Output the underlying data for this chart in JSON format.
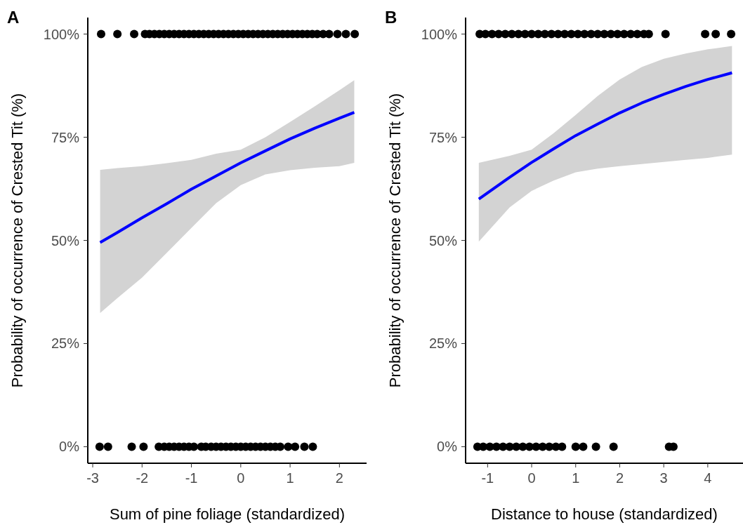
{
  "chart_data": [
    {
      "type": "scatter",
      "title": "A",
      "xlabel": "Sum of pine foliage (standardized)",
      "ylabel": "Probability of occurrence of Crested Tit (%)",
      "xlim": [
        -3.1,
        2.55
      ],
      "xticks": [
        -3,
        -2,
        -1,
        0,
        1,
        2
      ],
      "ylim": [
        -4,
        104
      ],
      "yticks": [
        {
          "value": 0,
          "label": "0%"
        },
        {
          "value": 25,
          "label": "25%"
        },
        {
          "value": 50,
          "label": "50%"
        },
        {
          "value": 75,
          "label": "75%"
        },
        {
          "value": 100,
          "label": "100%"
        }
      ],
      "grid": false,
      "series": [
        {
          "marker": "circle",
          "color": "#000000",
          "x": [
            -2.83,
            -2.5,
            -2.16,
            -1.94,
            -1.85,
            -1.75,
            -1.65,
            -1.55,
            -1.45,
            -1.35,
            -1.25,
            -1.15,
            -1.05,
            -0.95,
            -0.85,
            -0.75,
            -0.65,
            -0.55,
            -0.45,
            -0.35,
            -0.25,
            -0.15,
            -0.05,
            0.05,
            0.15,
            0.25,
            0.35,
            0.45,
            0.55,
            0.65,
            0.75,
            0.85,
            0.95,
            1.05,
            1.15,
            1.25,
            1.35,
            1.45,
            1.55,
            1.67,
            1.79,
            1.96,
            2.13,
            2.31
          ],
          "values": [
            100,
            100,
            100,
            100,
            100,
            100,
            100,
            100,
            100,
            100,
            100,
            100,
            100,
            100,
            100,
            100,
            100,
            100,
            100,
            100,
            100,
            100,
            100,
            100,
            100,
            100,
            100,
            100,
            100,
            100,
            100,
            100,
            100,
            100,
            100,
            100,
            100,
            100,
            100,
            100,
            100,
            100,
            100,
            100
          ]
        },
        {
          "marker": "circle",
          "color": "#000000",
          "x": [
            -2.86,
            -2.69,
            -2.21,
            -1.97,
            -1.66,
            -1.55,
            -1.45,
            -1.35,
            -1.25,
            -1.15,
            -1.05,
            -0.95,
            -0.8,
            -0.71,
            -0.6,
            -0.5,
            -0.4,
            -0.3,
            -0.2,
            -0.1,
            0,
            0.1,
            0.2,
            0.3,
            0.4,
            0.5,
            0.6,
            0.7,
            0.8,
            0.96,
            1.1,
            1.29,
            1.46
          ],
          "values": [
            0,
            0,
            0,
            0,
            0,
            0,
            0,
            0,
            0,
            0,
            0,
            0,
            0,
            0,
            0,
            0,
            0,
            0,
            0,
            0,
            0,
            0,
            0,
            0,
            0,
            0,
            0,
            0,
            0,
            0,
            0,
            0,
            0
          ]
        },
        {
          "type": "line",
          "color": "#0000ff",
          "x": [
            -2.85,
            -2.5,
            -2,
            -1.5,
            -1,
            -0.5,
            0,
            0.5,
            1,
            1.5,
            2,
            2.3
          ],
          "values": [
            49.5,
            51.9,
            55.5,
            58.9,
            62.4,
            65.6,
            68.8,
            71.7,
            74.6,
            77.2,
            79.6,
            81.0
          ],
          "lower": [
            32.4,
            36,
            41,
            47,
            53,
            59,
            63.4,
            66,
            67,
            67.6,
            68,
            68.8
          ],
          "upper": [
            67.1,
            67.5,
            68,
            68.7,
            69.5,
            71,
            72,
            75,
            78.7,
            82.5,
            86.4,
            88.8
          ]
        }
      ]
    },
    {
      "type": "scatter",
      "title": "B",
      "xlabel": "Distance to house (standardized)",
      "ylabel": "Probability of occurrence of Crested Tit (%)",
      "xlim": [
        -1.5,
        4.8
      ],
      "xticks": [
        -1,
        0,
        1,
        2,
        3,
        4
      ],
      "ylim": [
        -4,
        104
      ],
      "yticks": [
        {
          "value": 0,
          "label": "0%"
        },
        {
          "value": 25,
          "label": "25%"
        },
        {
          "value": 50,
          "label": "50%"
        },
        {
          "value": 75,
          "label": "75%"
        },
        {
          "value": 100,
          "label": "100%"
        }
      ],
      "grid": false,
      "series": [
        {
          "marker": "circle",
          "color": "#000000",
          "x": [
            -1.18,
            -1.05,
            -0.9,
            -0.75,
            -0.6,
            -0.45,
            -0.3,
            -0.15,
            0,
            0.15,
            0.3,
            0.45,
            0.6,
            0.75,
            0.9,
            1.05,
            1.2,
            1.35,
            1.5,
            1.65,
            1.8,
            1.95,
            2.1,
            2.25,
            2.4,
            2.55,
            2.66,
            3.04,
            3.94,
            4.18,
            4.53
          ],
          "values": [
            100,
            100,
            100,
            100,
            100,
            100,
            100,
            100,
            100,
            100,
            100,
            100,
            100,
            100,
            100,
            100,
            100,
            100,
            100,
            100,
            100,
            100,
            100,
            100,
            100,
            100,
            100,
            100,
            100,
            100,
            100
          ]
        },
        {
          "marker": "circle",
          "color": "#000000",
          "x": [
            -1.23,
            -1.1,
            -0.95,
            -0.8,
            -0.65,
            -0.5,
            -0.35,
            -0.2,
            -0.05,
            0.1,
            0.25,
            0.4,
            0.55,
            0.69,
            1.0,
            1.17,
            1.46,
            1.86,
            3.12,
            3.22
          ],
          "values": [
            0,
            0,
            0,
            0,
            0,
            0,
            0,
            0,
            0,
            0,
            0,
            0,
            0,
            0,
            0,
            0,
            0,
            0,
            0,
            0
          ]
        },
        {
          "type": "line",
          "color": "#0000ff",
          "x": [
            -1.2,
            -0.5,
            0,
            0.5,
            1,
            1.5,
            2,
            2.5,
            3,
            3.5,
            4,
            4.55
          ],
          "values": [
            60.0,
            65.3,
            68.9,
            72.2,
            75.4,
            78.2,
            80.9,
            83.3,
            85.4,
            87.3,
            89.0,
            90.6
          ],
          "lower": [
            49.7,
            58,
            62,
            64.5,
            66.5,
            67.4,
            68,
            68.5,
            69,
            69.5,
            70,
            70.8
          ],
          "upper": [
            68.8,
            70.5,
            72,
            76,
            80.4,
            85,
            89,
            92,
            94,
            95.3,
            96.3,
            97.1
          ]
        }
      ]
    }
  ]
}
